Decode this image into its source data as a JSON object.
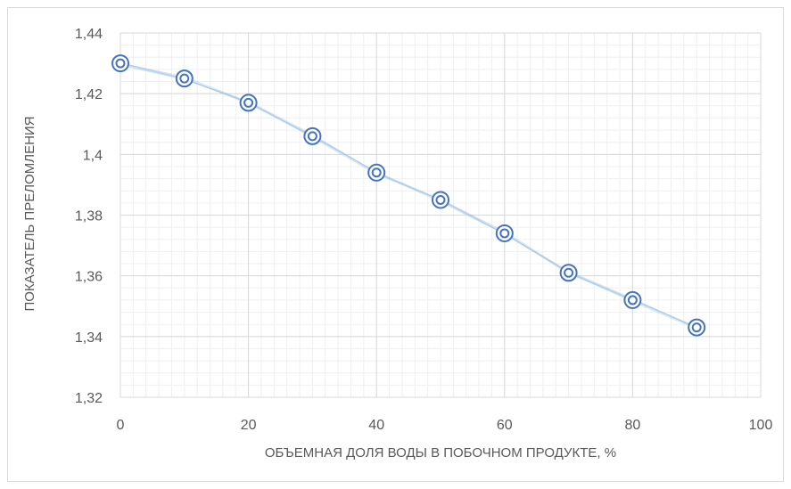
{
  "chart_data": {
    "type": "line",
    "title": "",
    "xlabel": "ОБЪЕМНАЯ ДОЛЯ ВОДЫ В ПОБОЧНОМ ПРОДУКТЕ, %",
    "ylabel": "ПОКАЗАТЕЛЬ ПРЕЛОМЛЕНИЯ",
    "xlim": [
      0,
      100
    ],
    "ylim": [
      1.32,
      1.44
    ],
    "x_ticks": [
      "0",
      "20",
      "40",
      "60",
      "80",
      "100"
    ],
    "y_ticks": [
      "1,32",
      "1,34",
      "1,36",
      "1,38",
      "1,4",
      "1,42",
      "1,44"
    ],
    "grid": true,
    "minor_grid": true,
    "legend": "none",
    "series": [
      {
        "x": [
          0,
          10,
          20,
          30,
          40,
          50,
          60,
          70,
          80,
          90
        ],
        "y": [
          1.43,
          1.425,
          1.417,
          1.406,
          1.394,
          1.385,
          1.374,
          1.361,
          1.352,
          1.343
        ],
        "color": "#4472c4"
      }
    ]
  }
}
